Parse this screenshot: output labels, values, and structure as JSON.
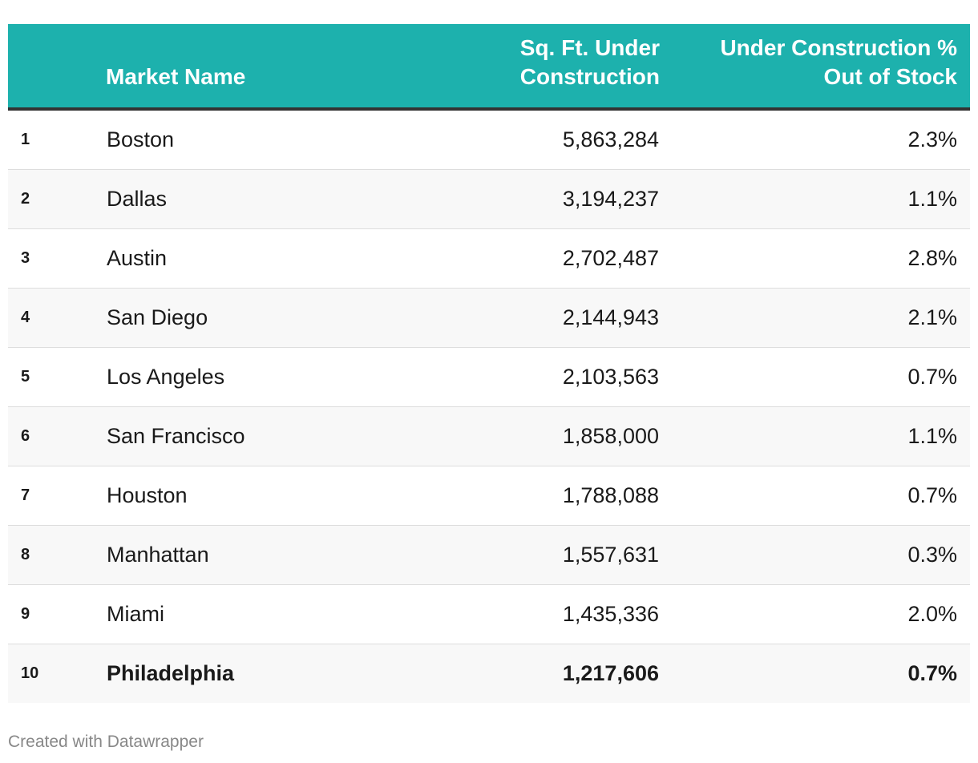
{
  "chart_data": {
    "type": "table",
    "columns": [
      "",
      "Market Name",
      "Sq. Ft. Under Construction",
      "Under Construction % Out of Stock"
    ],
    "header": {
      "rank": "",
      "name": "Market Name",
      "sqft_line1": "Sq. Ft. Under",
      "sqft_line2": "Construction",
      "pct_line1": "Under Construction %",
      "pct_line2": "Out of Stock"
    },
    "rows": [
      {
        "rank": "1",
        "name": "Boston",
        "sqft": "5,863,284",
        "pct": "2.3%"
      },
      {
        "rank": "2",
        "name": "Dallas",
        "sqft": "3,194,237",
        "pct": "1.1%"
      },
      {
        "rank": "3",
        "name": "Austin",
        "sqft": "2,702,487",
        "pct": "2.8%"
      },
      {
        "rank": "4",
        "name": "San Diego",
        "sqft": "2,144,943",
        "pct": "2.1%"
      },
      {
        "rank": "5",
        "name": "Los Angeles",
        "sqft": "2,103,563",
        "pct": "0.7%"
      },
      {
        "rank": "6",
        "name": "San Francisco",
        "sqft": "1,858,000",
        "pct": "1.1%"
      },
      {
        "rank": "7",
        "name": "Houston",
        "sqft": "1,788,088",
        "pct": "0.7%"
      },
      {
        "rank": "8",
        "name": "Manhattan",
        "sqft": "1,557,631",
        "pct": "0.3%"
      },
      {
        "rank": "9",
        "name": "Miami",
        "sqft": "1,435,336",
        "pct": "2.0%"
      },
      {
        "rank": "10",
        "name": "Philadelphia",
        "sqft": "1,217,606",
        "pct": "0.7%",
        "bold": true
      }
    ],
    "header_color": "#1db1ad"
  },
  "footer": {
    "credit": "Created with Datawrapper"
  }
}
